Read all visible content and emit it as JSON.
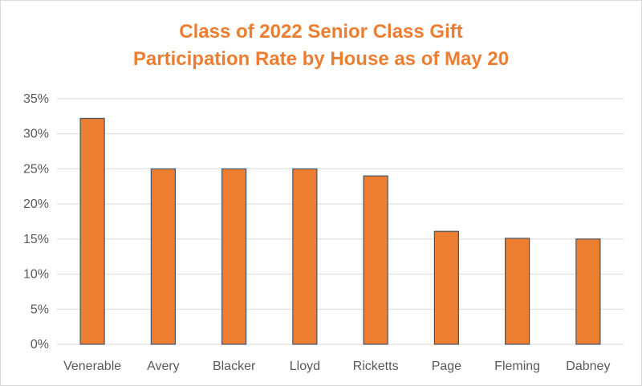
{
  "chart_data": {
    "type": "bar",
    "title_lines": [
      "Class of 2022 Senior Class Gift",
      "Participation Rate by House as of May 20"
    ],
    "categories": [
      "Venerable",
      "Avery",
      "Blacker",
      "Lloyd",
      "Ricketts",
      "Page",
      "Fleming",
      "Dabney"
    ],
    "values": [
      32.2,
      25.0,
      25.0,
      25.0,
      24.0,
      16.1,
      15.1,
      15.0
    ],
    "value_unit": "%",
    "ylim": [
      0,
      35
    ],
    "yticks": [
      "0%",
      "5%",
      "10%",
      "15%",
      "20%",
      "25%",
      "30%",
      "35%"
    ],
    "ytick_values": [
      0,
      5,
      10,
      15,
      20,
      25,
      30,
      35
    ],
    "xlabel": "",
    "ylabel": "",
    "grid": true,
    "legend": "none",
    "colors": {
      "bar_fill": "#ED7D31",
      "bar_stroke": "#44546A",
      "title": "#ED7D31",
      "grid": "#D9D9D9",
      "tick_text": "#595959"
    }
  }
}
